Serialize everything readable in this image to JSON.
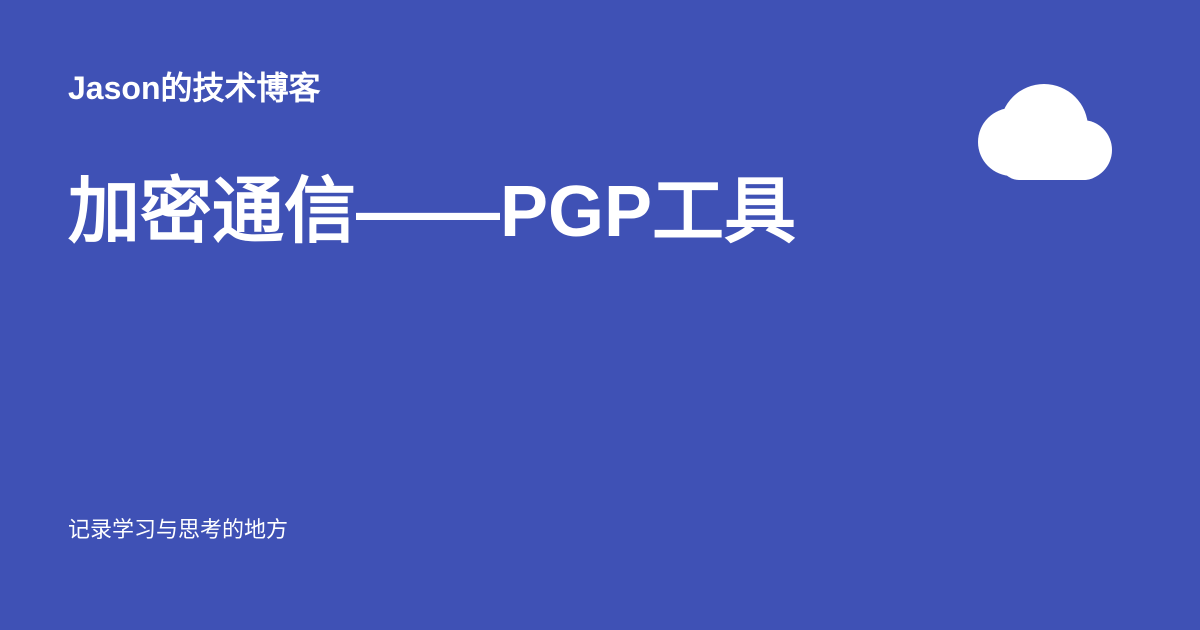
{
  "card": {
    "background_color": "#3f51b5",
    "text_color": "#ffffff",
    "site_name": "Jason的技术博客",
    "post_title": "加密通信——PGP工具",
    "footer_text": "记录学习与思考的地方",
    "logo_icon": "cloud-icon"
  }
}
